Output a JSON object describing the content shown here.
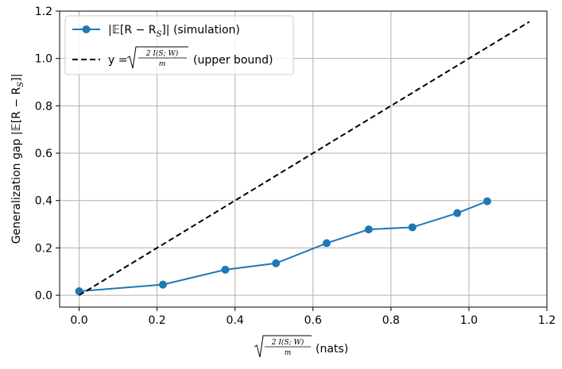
{
  "chart_data": {
    "type": "line",
    "xlabel_text": "(nats)",
    "ylabel": "Generalization gap |𝔼[R − R",
    "ylabel_sub": "S",
    "ylabel_end": "]|",
    "xlim": [
      -0.05,
      1.2
    ],
    "ylim": [
      -0.05,
      1.2
    ],
    "xticks": [
      0.0,
      0.2,
      0.4,
      0.6,
      0.8,
      1.0,
      1.2
    ],
    "yticks": [
      0.0,
      0.2,
      0.4,
      0.6,
      0.8,
      1.0,
      1.2
    ],
    "xtick_labels": [
      "0.0",
      "0.2",
      "0.4",
      "0.6",
      "0.8",
      "1.0",
      "1.2"
    ],
    "ytick_labels": [
      "0.0",
      "0.2",
      "0.4",
      "0.6",
      "0.8",
      "1.0",
      "1.2"
    ],
    "grid": true,
    "legend_position": "top-left",
    "series": [
      {
        "name": "|𝔼[R − R_S]| (simulation)",
        "legend_main": "|𝔼[R − R",
        "legend_sub": "S",
        "legend_end": "]| (simulation)",
        "style": "solid-marker",
        "color": "#1f77b4",
        "x": [
          0.0,
          0.215,
          0.375,
          0.505,
          0.635,
          0.743,
          0.855,
          0.97,
          1.047
        ],
        "y": [
          0.017,
          0.045,
          0.108,
          0.135,
          0.22,
          0.278,
          0.287,
          0.347,
          0.397
        ]
      },
      {
        "name": "y = √(2 I(S;W)/m) (upper bound)",
        "legend_main": "y =",
        "legend_end": "(upper bound)",
        "style": "dashed",
        "color": "#000000",
        "x": [
          0.0,
          1.155
        ],
        "y": [
          0.0,
          1.155
        ]
      }
    ],
    "math": {
      "numerator": "2 I(S; W)",
      "denominator": "m"
    }
  }
}
